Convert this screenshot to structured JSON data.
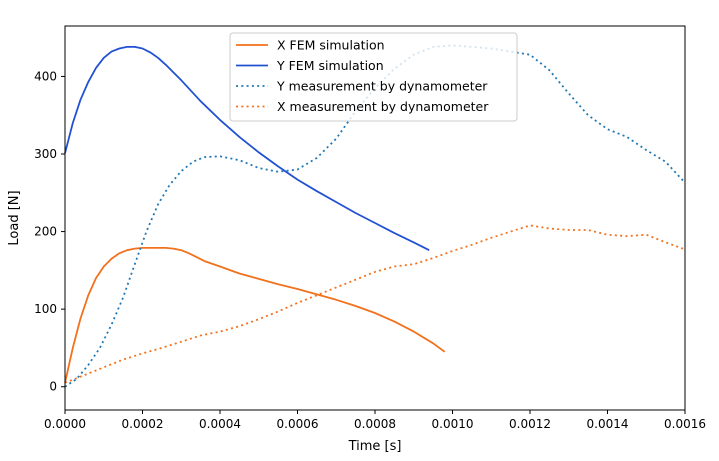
{
  "chart_data": {
    "type": "line",
    "title": "",
    "xlabel": "Time [s]",
    "ylabel": "Load [N]",
    "xlim": [
      0,
      0.0016
    ],
    "ylim": [
      -30,
      465
    ],
    "grid": false,
    "legend_position": "top-center",
    "x_ticks": [
      {
        "value": 0,
        "label": "0.0000"
      },
      {
        "value": 0.0002,
        "label": "0.0002"
      },
      {
        "value": 0.0004,
        "label": "0.0004"
      },
      {
        "value": 0.0006,
        "label": "0.0006"
      },
      {
        "value": 0.0008,
        "label": "0.0008"
      },
      {
        "value": 0.001,
        "label": "0.0010"
      },
      {
        "value": 0.0012,
        "label": "0.0012"
      },
      {
        "value": 0.0014,
        "label": "0.0014"
      },
      {
        "value": 0.0016,
        "label": "0.0016"
      }
    ],
    "y_ticks": [
      {
        "value": 0,
        "label": "0"
      },
      {
        "value": 100,
        "label": "100"
      },
      {
        "value": 200,
        "label": "200"
      },
      {
        "value": 300,
        "label": "300"
      },
      {
        "value": 400,
        "label": "400"
      }
    ],
    "series": [
      {
        "name": "X FEM simulation",
        "color": "#f2711c",
        "style": "solid",
        "points": [
          [
            0,
            5
          ],
          [
            2e-05,
            50
          ],
          [
            4e-05,
            88
          ],
          [
            6e-05,
            118
          ],
          [
            8e-05,
            140
          ],
          [
            0.0001,
            155
          ],
          [
            0.00012,
            165
          ],
          [
            0.00014,
            172
          ],
          [
            0.00016,
            176
          ],
          [
            0.00018,
            178
          ],
          [
            0.0002,
            179
          ],
          [
            0.00022,
            179
          ],
          [
            0.00024,
            179
          ],
          [
            0.00026,
            179
          ],
          [
            0.00028,
            178
          ],
          [
            0.0003,
            176
          ],
          [
            0.00032,
            172
          ],
          [
            0.00034,
            167
          ],
          [
            0.00036,
            162
          ],
          [
            0.0004,
            155
          ],
          [
            0.00045,
            146
          ],
          [
            0.0005,
            139
          ],
          [
            0.00055,
            132
          ],
          [
            0.0006,
            126
          ],
          [
            0.00065,
            119
          ],
          [
            0.0007,
            112
          ],
          [
            0.00075,
            104
          ],
          [
            0.0008,
            95
          ],
          [
            0.00085,
            84
          ],
          [
            0.0009,
            71
          ],
          [
            0.00095,
            56
          ],
          [
            0.00098,
            45
          ]
        ]
      },
      {
        "name": "Y FEM simulation",
        "color": "#2251d1",
        "style": "solid",
        "points": [
          [
            0,
            301
          ],
          [
            2e-05,
            340
          ],
          [
            4e-05,
            370
          ],
          [
            6e-05,
            393
          ],
          [
            8e-05,
            411
          ],
          [
            0.0001,
            424
          ],
          [
            0.00012,
            432
          ],
          [
            0.00014,
            436
          ],
          [
            0.00016,
            438
          ],
          [
            0.00018,
            438
          ],
          [
            0.0002,
            436
          ],
          [
            0.00022,
            431
          ],
          [
            0.00024,
            424
          ],
          [
            0.00026,
            415
          ],
          [
            0.00028,
            405
          ],
          [
            0.0003,
            395
          ],
          [
            0.00035,
            368
          ],
          [
            0.0004,
            344
          ],
          [
            0.00045,
            322
          ],
          [
            0.0005,
            302
          ],
          [
            0.00055,
            284
          ],
          [
            0.0006,
            267
          ],
          [
            0.00065,
            252
          ],
          [
            0.0007,
            238
          ],
          [
            0.00075,
            224
          ],
          [
            0.0008,
            211
          ],
          [
            0.00085,
            198
          ],
          [
            0.0009,
            186
          ],
          [
            0.00094,
            176
          ]
        ]
      },
      {
        "name": "Y measurement by dynamometer",
        "color": "#1f77b4",
        "style": "dotted",
        "points": [
          [
            0,
            0
          ],
          [
            3e-05,
            10
          ],
          [
            6e-05,
            28
          ],
          [
            9e-05,
            50
          ],
          [
            0.00012,
            80
          ],
          [
            0.00015,
            115
          ],
          [
            0.00018,
            158
          ],
          [
            0.00021,
            200
          ],
          [
            0.00024,
            235
          ],
          [
            0.00027,
            260
          ],
          [
            0.0003,
            278
          ],
          [
            0.00033,
            290
          ],
          [
            0.00036,
            296
          ],
          [
            0.0004,
            297
          ],
          [
            0.00045,
            292
          ],
          [
            0.0005,
            282
          ],
          [
            0.00055,
            277
          ],
          [
            0.0006,
            280
          ],
          [
            0.00065,
            295
          ],
          [
            0.0007,
            320
          ],
          [
            0.00075,
            355
          ],
          [
            0.0008,
            385
          ],
          [
            0.00085,
            410
          ],
          [
            0.0009,
            428
          ],
          [
            0.00095,
            438
          ],
          [
            0.001,
            440
          ],
          [
            0.00105,
            438
          ],
          [
            0.0011,
            436
          ],
          [
            0.00115,
            432
          ],
          [
            0.0012,
            428
          ],
          [
            0.00125,
            408
          ],
          [
            0.0013,
            378
          ],
          [
            0.00135,
            350
          ],
          [
            0.0014,
            332
          ],
          [
            0.00145,
            322
          ],
          [
            0.0015,
            305
          ],
          [
            0.00155,
            290
          ],
          [
            0.0016,
            263
          ]
        ]
      },
      {
        "name": "X measurement by dynamometer",
        "color": "#f2711c",
        "style": "dotted",
        "points": [
          [
            0,
            5
          ],
          [
            5e-05,
            15
          ],
          [
            0.0001,
            25
          ],
          [
            0.00015,
            35
          ],
          [
            0.0002,
            43
          ],
          [
            0.00025,
            50
          ],
          [
            0.0003,
            58
          ],
          [
            0.00035,
            66
          ],
          [
            0.0004,
            71
          ],
          [
            0.00045,
            78
          ],
          [
            0.0005,
            87
          ],
          [
            0.00055,
            97
          ],
          [
            0.0006,
            108
          ],
          [
            0.00065,
            118
          ],
          [
            0.0007,
            128
          ],
          [
            0.00075,
            138
          ],
          [
            0.0008,
            148
          ],
          [
            0.00085,
            155
          ],
          [
            0.0009,
            158
          ],
          [
            0.00095,
            166
          ],
          [
            0.001,
            175
          ],
          [
            0.00105,
            183
          ],
          [
            0.0011,
            192
          ],
          [
            0.00115,
            200
          ],
          [
            0.0012,
            208
          ],
          [
            0.00125,
            204
          ],
          [
            0.0013,
            202
          ],
          [
            0.00135,
            202
          ],
          [
            0.0014,
            196
          ],
          [
            0.00145,
            194
          ],
          [
            0.0015,
            196
          ],
          [
            0.00155,
            186
          ],
          [
            0.0016,
            177
          ]
        ]
      }
    ]
  }
}
